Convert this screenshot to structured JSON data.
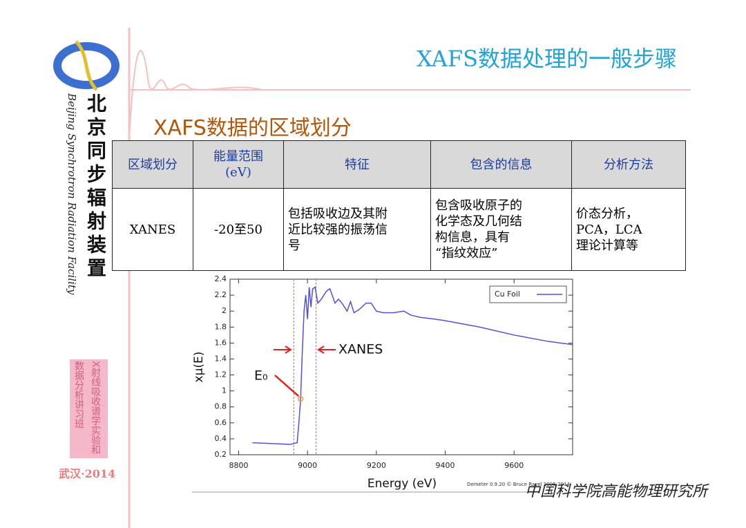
{
  "header": {
    "title": "XAFS数据处理的一般步骤"
  },
  "sidebar": {
    "org_cn": "北京同步辐射装置",
    "org_en": "Beijing Synchrotron Radiation Facility",
    "workshop": "X射线吸收谱学实验和数据分析讲习班",
    "place": "武汉·2014"
  },
  "subtitle": "XAFS数据的区域划分",
  "table": {
    "header": [
      "区域划分",
      "能量范围\n(eV)",
      "特征",
      "包含的信息",
      "分析方法"
    ],
    "rows": [
      [
        "XANES",
        "-20至50",
        "包括吸收边及其附\n近比较强的振荡信\n号",
        "包含吸收原子的\n化学态及几何结\n构信息，具有\n“指纹效应”",
        "价态分析，\nPCA，LCA\n理论计算等"
      ]
    ]
  },
  "chart_data": {
    "type": "line",
    "xlabel": "Energy  (eV)",
    "ylabel": "xμ(E)",
    "x": [
      8840,
      8900,
      8950,
      8970,
      8975,
      8980,
      8985,
      8990,
      8995,
      9000,
      9005,
      9010,
      9015,
      9022,
      9030,
      9040,
      9055,
      9065,
      9080,
      9090,
      9100,
      9115,
      9125,
      9135,
      9150,
      9170,
      9185,
      9200,
      9220,
      9250,
      9280,
      9300,
      9330,
      9370,
      9400,
      9500,
      9600,
      9700,
      9770
    ],
    "series": [
      {
        "name": "Cu Foil",
        "color": "#5050e0",
        "values": [
          0.35,
          0.34,
          0.33,
          0.35,
          0.6,
          0.9,
          1.5,
          2.0,
          2.2,
          1.9,
          2.3,
          2.05,
          2.28,
          2.3,
          2.1,
          2.15,
          2.25,
          2.28,
          2.1,
          2.15,
          2.1,
          2.0,
          2.12,
          1.98,
          2.02,
          2.1,
          2.1,
          2.0,
          1.98,
          1.98,
          2.0,
          1.95,
          1.92,
          1.9,
          1.88,
          1.8,
          1.7,
          1.62,
          1.58
        ]
      }
    ],
    "xlim": [
      8775,
      9770
    ],
    "ylim": [
      0.2,
      2.4
    ],
    "xticks": [
      8800,
      9000,
      9200,
      9400,
      9600
    ],
    "yticks": [
      0.2,
      0.4,
      0.6,
      0.8,
      1,
      1.2,
      1.4,
      1.6,
      1.8,
      2,
      2.2,
      2.4
    ],
    "legend": "upper right",
    "region_lines": [
      8960,
      9025
    ],
    "annotations": [
      {
        "text": "XANES"
      },
      {
        "text": "E₀",
        "x": 8980,
        "y": 0.9
      }
    ],
    "footer": "Demeter 0.9.20 © Bruce Ravel 2006-2014"
  },
  "footer": {
    "institute": "中国科学院高能物理研究所"
  }
}
